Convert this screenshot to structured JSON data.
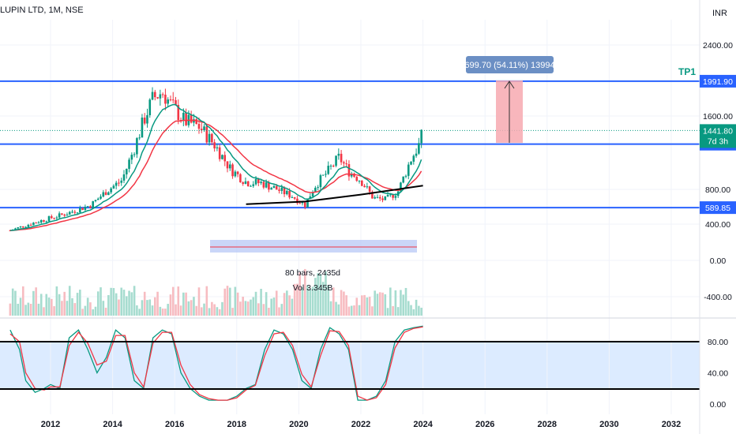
{
  "header": {
    "symbol": "LUPIN LTD, 1M, NSE",
    "currency": "INR"
  },
  "colors": {
    "up": "#089981",
    "down": "#f23645",
    "hline": "#2962ff",
    "ema_fast": "#089981",
    "ema_slow": "#f23645",
    "trend": "#000000",
    "osc_band": "#dcebff",
    "range_box": "#b3c5f5",
    "target_box": "#f7a9b0",
    "label_bg": "#6b8fc4"
  },
  "chart_data": [
    {
      "type": "candlestick",
      "title": "LUPIN LTD, 1M, NSE",
      "x_ticks": [
        "2012",
        "2014",
        "2016",
        "2018",
        "2020",
        "2022",
        "2024",
        "2026",
        "2028",
        "2030",
        "2032"
      ],
      "x_range": [
        2010.7,
        2033.4
      ],
      "y_ticks": [
        "2400.00",
        "1600.00",
        "800.00",
        "400.00",
        "0.00",
        "-400.00"
      ],
      "y_axis_label": "INR",
      "ohlc_anchor_points": [
        {
          "t": 2010.7,
          "close": 330
        },
        {
          "t": 2011.5,
          "close": 420
        },
        {
          "t": 2012.5,
          "close": 520
        },
        {
          "t": 2013.3,
          "close": 620
        },
        {
          "t": 2013.8,
          "close": 780
        },
        {
          "t": 2014.3,
          "close": 900
        },
        {
          "t": 2014.7,
          "close": 1250
        },
        {
          "t": 2015.0,
          "close": 1550
        },
        {
          "t": 2015.3,
          "close": 1800
        },
        {
          "t": 2015.6,
          "close": 1870
        },
        {
          "t": 2015.9,
          "close": 1720
        },
        {
          "t": 2016.3,
          "close": 1550
        },
        {
          "t": 2016.8,
          "close": 1480
        },
        {
          "t": 2017.3,
          "close": 1280
        },
        {
          "t": 2017.8,
          "close": 1020
        },
        {
          "t": 2018.3,
          "close": 880
        },
        {
          "t": 2018.8,
          "close": 870
        },
        {
          "t": 2019.3,
          "close": 800
        },
        {
          "t": 2019.8,
          "close": 720
        },
        {
          "t": 2020.2,
          "close": 620
        },
        {
          "t": 2020.5,
          "close": 830
        },
        {
          "t": 2020.9,
          "close": 980
        },
        {
          "t": 2021.3,
          "close": 1150
        },
        {
          "t": 2021.6,
          "close": 1000
        },
        {
          "t": 2022.0,
          "close": 900
        },
        {
          "t": 2022.4,
          "close": 700
        },
        {
          "t": 2022.8,
          "close": 680
        },
        {
          "t": 2023.2,
          "close": 780
        },
        {
          "t": 2023.6,
          "close": 1120
        },
        {
          "t": 2023.9,
          "close": 1300
        },
        {
          "t": 2024.0,
          "close": 1441.8
        }
      ],
      "horizontal_lines": [
        {
          "value": 1991.9,
          "label": "1991.90"
        },
        {
          "value": 1293.05,
          "label": "1293.05"
        },
        {
          "value": 589.85,
          "label": "589.85"
        }
      ],
      "last_price": {
        "value": 1441.8,
        "label": "1441.80",
        "countdown": "7d 3h"
      },
      "target_label": "TP1",
      "measure_label": "699.70 (54.11%) 13994",
      "measure_from": 1293.05,
      "measure_to": 1991.9,
      "range_info": {
        "bars": "80 bars, 2435d",
        "volume": "Vol 3.345B",
        "from": 2017.3,
        "to": 2024.0
      },
      "trendline": [
        {
          "t": 2018.3,
          "value": 630
        },
        {
          "t": 2020.2,
          "value": 660
        },
        {
          "t": 2022.0,
          "value": 740
        },
        {
          "t": 2024.0,
          "value": 840
        }
      ]
    },
    {
      "type": "line",
      "title": "",
      "y_ticks": [
        "80.00",
        "40.00",
        "0.00"
      ],
      "ylim": [
        -5,
        110
      ],
      "levels": [
        80,
        20
      ],
      "series": [
        {
          "x": [
            2010.7,
            2011.0,
            2011.2,
            2011.5,
            2011.8,
            2012.0,
            2012.3,
            2012.6,
            2012.9,
            2013.2,
            2013.5,
            2013.8,
            2014.1,
            2014.4,
            2014.7,
            2015.0,
            2015.3,
            2015.6,
            2015.9,
            2016.2,
            2016.5,
            2016.8,
            2017.1,
            2017.4,
            2017.7,
            2018.0,
            2018.3,
            2018.6,
            2018.9,
            2019.2,
            2019.5,
            2019.8,
            2020.1,
            2020.4,
            2020.7,
            2021.0,
            2021.3,
            2021.6,
            2021.9,
            2022.2,
            2022.5,
            2022.8,
            2023.1,
            2023.4,
            2023.7,
            2024.0
          ],
          "values": [
            95,
            70,
            30,
            15,
            20,
            25,
            20,
            85,
            95,
            70,
            40,
            60,
            95,
            85,
            30,
            20,
            85,
            95,
            90,
            40,
            20,
            10,
            5,
            5,
            5,
            10,
            20,
            25,
            70,
            95,
            90,
            70,
            30,
            20,
            70,
            98,
            90,
            70,
            5,
            5,
            10,
            30,
            80,
            95,
            98,
            100
          ]
        },
        {
          "x": [
            2010.7,
            2011.0,
            2011.2,
            2011.5,
            2011.8,
            2012.0,
            2012.3,
            2012.6,
            2012.9,
            2013.2,
            2013.5,
            2013.8,
            2014.1,
            2014.4,
            2014.7,
            2015.0,
            2015.3,
            2015.6,
            2015.9,
            2016.2,
            2016.5,
            2016.8,
            2017.1,
            2017.4,
            2017.7,
            2018.0,
            2018.3,
            2018.6,
            2018.9,
            2019.2,
            2019.5,
            2019.8,
            2020.1,
            2020.4,
            2020.7,
            2021.0,
            2021.3,
            2021.6,
            2021.9,
            2022.2,
            2022.5,
            2022.8,
            2023.1,
            2023.4,
            2023.7,
            2024.0
          ],
          "values": [
            90,
            80,
            40,
            20,
            18,
            22,
            22,
            75,
            92,
            78,
            50,
            55,
            88,
            88,
            40,
            22,
            78,
            92,
            92,
            50,
            25,
            12,
            7,
            5,
            5,
            8,
            18,
            24,
            62,
            90,
            92,
            75,
            38,
            22,
            62,
            94,
            93,
            75,
            10,
            5,
            8,
            25,
            72,
            92,
            97,
            99
          ]
        }
      ]
    }
  ]
}
